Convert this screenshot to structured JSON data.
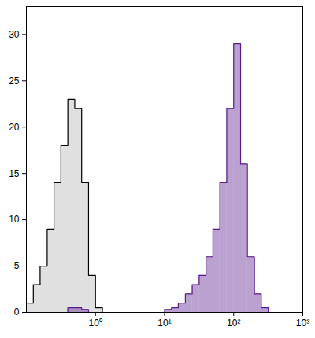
{
  "chart_data": {
    "type": "histogram",
    "log": "x",
    "tick_labels": true,
    "bins": [
      0.1,
      0.126,
      0.158,
      0.2,
      0.251,
      0.316,
      0.398,
      0.501,
      0.631,
      0.794,
      1,
      1.26,
      1.58,
      2,
      2.51,
      3.16,
      3.98,
      5.01,
      6.31,
      7.94,
      10,
      12.6,
      15.8,
      20,
      25.1,
      31.6,
      39.8,
      50.1,
      63.1,
      79.4,
      100,
      126,
      158,
      200,
      251,
      316,
      398,
      501,
      631,
      794,
      1000
    ],
    "series": [
      {
        "color": "#000000",
        "values": [
          1,
          3,
          5,
          9,
          14,
          18,
          23,
          22,
          14,
          4,
          0.5,
          0,
          0,
          0,
          0,
          0,
          0,
          0,
          0,
          0,
          0,
          0,
          0,
          0,
          0,
          0,
          0,
          0,
          0,
          0,
          0,
          0,
          0,
          0,
          0,
          0,
          0,
          0,
          0,
          0
        ]
      },
      {
        "color": "#5a1e8c",
        "values": [
          0,
          0,
          0,
          0,
          0,
          0,
          0.5,
          0.5,
          0.3,
          0,
          0,
          0,
          0,
          0,
          0,
          0,
          0,
          0,
          0,
          0,
          0.3,
          0.5,
          1,
          2,
          3,
          4,
          6,
          9,
          14,
          22,
          29,
          16,
          6,
          2,
          0.5,
          0,
          0,
          0,
          0,
          0
        ]
      }
    ],
    "xlim": [
      0.1,
      1000
    ],
    "xticks": [
      {
        "value": 1,
        "label": "10⁰"
      },
      {
        "value": 10,
        "label": "10¹"
      },
      {
        "value": 100,
        "label": "10²"
      },
      {
        "value": 1000,
        "label": "10³"
      }
    ],
    "ylim": [
      0,
      33
    ],
    "yticks": [
      0,
      5,
      10,
      15,
      20,
      25,
      30
    ]
  }
}
